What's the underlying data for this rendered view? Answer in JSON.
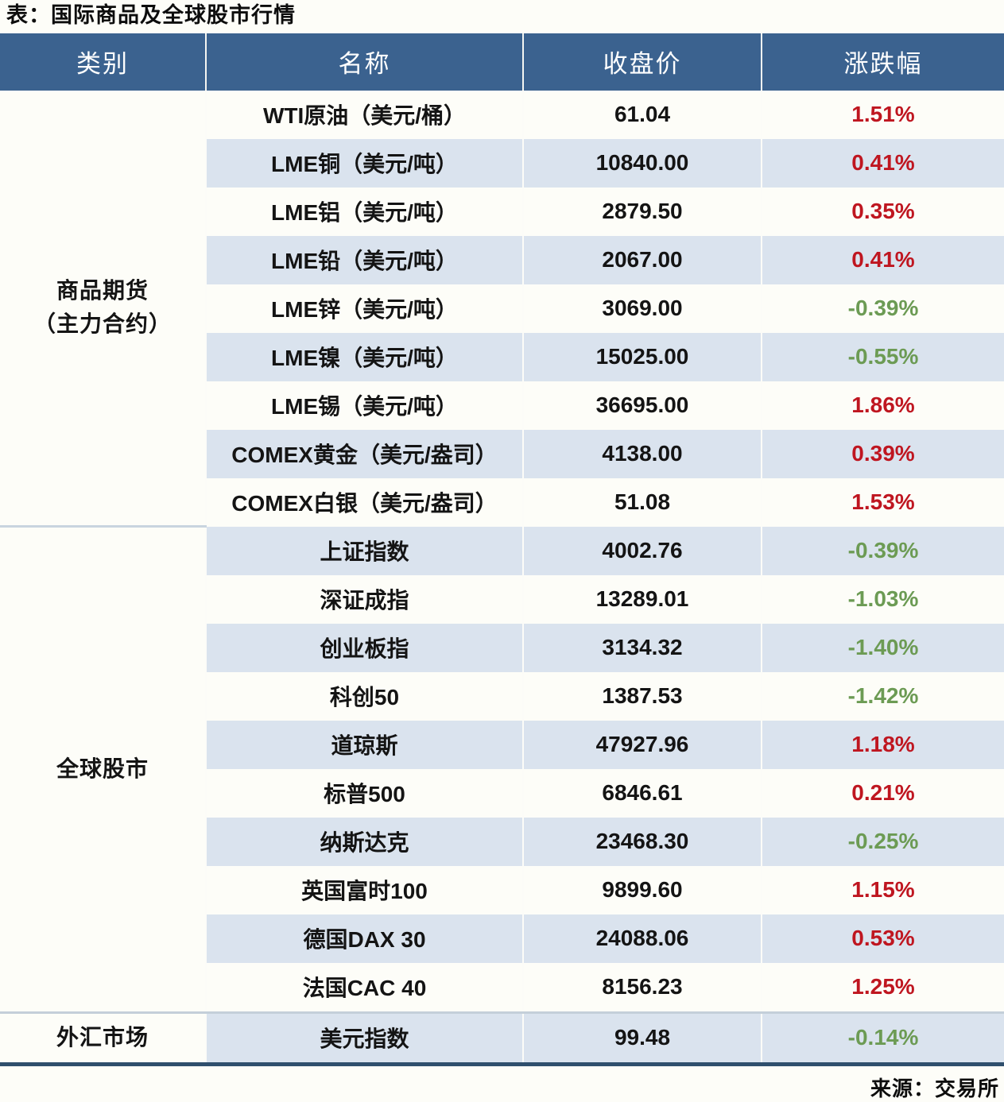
{
  "page": {
    "title": "表：国际商品及全球股市行情",
    "source": "来源：交易所"
  },
  "colors": {
    "header_bg": "#3B628F",
    "header_text": "#FFFFFF",
    "stripe_row_bg": "#DAE3EE",
    "plain_row_bg": "#FDFDF8",
    "up_red": "#BF1620",
    "down_green": "#6C9B54",
    "bottom_border": "#2F4F6D",
    "section_divider": "#C9D4DF"
  },
  "table": {
    "headers": [
      "类别",
      "名称",
      "收盘价",
      "涨跌幅"
    ],
    "sections": [
      {
        "category": "商品期货\n（主力合约）",
        "rows": [
          {
            "name": "WTI原油（美元/桶）",
            "close": "61.04",
            "change": "1.51%",
            "direction": "up"
          },
          {
            "name": "LME铜（美元/吨）",
            "close": "10840.00",
            "change": "0.41%",
            "direction": "up"
          },
          {
            "name": "LME铝（美元/吨）",
            "close": "2879.50",
            "change": "0.35%",
            "direction": "up"
          },
          {
            "name": "LME铅（美元/吨）",
            "close": "2067.00",
            "change": "0.41%",
            "direction": "up"
          },
          {
            "name": "LME锌（美元/吨）",
            "close": "3069.00",
            "change": "-0.39%",
            "direction": "down"
          },
          {
            "name": "LME镍（美元/吨）",
            "close": "15025.00",
            "change": "-0.55%",
            "direction": "down"
          },
          {
            "name": "LME锡（美元/吨）",
            "close": "36695.00",
            "change": "1.86%",
            "direction": "up"
          },
          {
            "name": "COMEX黄金（美元/盎司）",
            "close": "4138.00",
            "change": "0.39%",
            "direction": "up"
          },
          {
            "name": "COMEX白银（美元/盎司）",
            "close": "51.08",
            "change": "1.53%",
            "direction": "up"
          }
        ]
      },
      {
        "category": "全球股市",
        "rows": [
          {
            "name": "上证指数",
            "close": "4002.76",
            "change": "-0.39%",
            "direction": "down"
          },
          {
            "name": "深证成指",
            "close": "13289.01",
            "change": "-1.03%",
            "direction": "down"
          },
          {
            "name": "创业板指",
            "close": "3134.32",
            "change": "-1.40%",
            "direction": "down"
          },
          {
            "name": "科创50",
            "close": "1387.53",
            "change": "-1.42%",
            "direction": "down"
          },
          {
            "name": "道琼斯",
            "close": "47927.96",
            "change": "1.18%",
            "direction": "up"
          },
          {
            "name": "标普500",
            "close": "6846.61",
            "change": "0.21%",
            "direction": "up"
          },
          {
            "name": "纳斯达克",
            "close": "23468.30",
            "change": "-0.25%",
            "direction": "down"
          },
          {
            "name": "英国富时100",
            "close": "9899.60",
            "change": "1.15%",
            "direction": "up"
          },
          {
            "name": "德国DAX 30",
            "close": "24088.06",
            "change": "0.53%",
            "direction": "up"
          },
          {
            "name": "法国CAC 40",
            "close": "8156.23",
            "change": "1.25%",
            "direction": "up"
          }
        ]
      },
      {
        "category": "外汇市场",
        "rows": [
          {
            "name": "美元指数",
            "close": "99.48",
            "change": "-0.14%",
            "direction": "down"
          }
        ]
      }
    ]
  },
  "chart_data": {
    "type": "table",
    "title": "表：国际商品及全球股市行情",
    "columns": [
      "类别",
      "名称",
      "收盘价",
      "涨跌幅"
    ],
    "rows": [
      [
        "商品期货（主力合约）",
        "WTI原油（美元/桶）",
        61.04,
        "1.51%"
      ],
      [
        "商品期货（主力合约）",
        "LME铜（美元/吨）",
        10840.0,
        "0.41%"
      ],
      [
        "商品期货（主力合约）",
        "LME铝（美元/吨）",
        2879.5,
        "0.35%"
      ],
      [
        "商品期货（主力合约）",
        "LME铅（美元/吨）",
        2067.0,
        "0.41%"
      ],
      [
        "商品期货（主力合约）",
        "LME锌（美元/吨）",
        3069.0,
        "-0.39%"
      ],
      [
        "商品期货（主力合约）",
        "LME镍（美元/吨）",
        15025.0,
        "-0.55%"
      ],
      [
        "商品期货（主力合约）",
        "LME锡（美元/吨）",
        36695.0,
        "1.86%"
      ],
      [
        "商品期货（主力合约）",
        "COMEX黄金（美元/盎司）",
        4138.0,
        "0.39%"
      ],
      [
        "商品期货（主力合约）",
        "COMEX白银（美元/盎司）",
        51.08,
        "1.53%"
      ],
      [
        "全球股市",
        "上证指数",
        4002.76,
        "-0.39%"
      ],
      [
        "全球股市",
        "深证成指",
        13289.01,
        "-1.03%"
      ],
      [
        "全球股市",
        "创业板指",
        3134.32,
        "-1.40%"
      ],
      [
        "全球股市",
        "科创50",
        1387.53,
        "-1.42%"
      ],
      [
        "全球股市",
        "道琼斯",
        47927.96,
        "1.18%"
      ],
      [
        "全球股市",
        "标普500",
        6846.61,
        "0.21%"
      ],
      [
        "全球股市",
        "纳斯达克",
        23468.3,
        "-0.25%"
      ],
      [
        "全球股市",
        "英国富时100",
        9899.6,
        "1.15%"
      ],
      [
        "全球股市",
        "德国DAX 30",
        24088.06,
        "0.53%"
      ],
      [
        "全球股市",
        "法国CAC 40",
        8156.23,
        "1.25%"
      ],
      [
        "外汇市场",
        "美元指数",
        99.48,
        "-0.14%"
      ]
    ],
    "legend": "涨跌幅红色=上涨，绿色=下跌"
  }
}
